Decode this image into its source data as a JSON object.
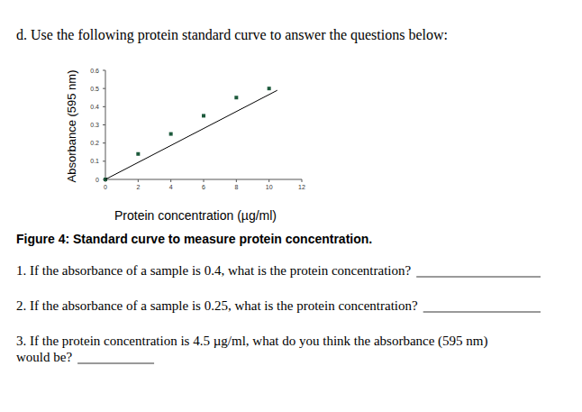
{
  "heading": "d. Use the following protein standard curve to answer the questions below:",
  "chart_data": {
    "type": "scatter",
    "x_label": "Protein concentration (µg/ml)",
    "y_label": "Absorbance (595 nm)",
    "xlim": [
      0,
      12
    ],
    "xticks": [
      0,
      2,
      4,
      6,
      8,
      10,
      12
    ],
    "ylim": [
      0,
      0.6
    ],
    "yticks": [
      0,
      0.1,
      0.2,
      0.3,
      0.4,
      0.5,
      0.6
    ],
    "grid": false,
    "series": [
      {
        "type": "scatter",
        "marker": "square",
        "color": "#1d5a3c",
        "x": [
          0,
          2,
          4,
          6,
          8,
          10
        ],
        "values": [
          0,
          0.14,
          0.25,
          0.35,
          0.45,
          0.5
        ]
      },
      {
        "type": "line",
        "marker": "none",
        "line_style": "solid",
        "color": "#000000",
        "x": [
          0,
          10.5
        ],
        "values": [
          0,
          0.49
        ]
      }
    ]
  },
  "caption": "Figure 4: Standard curve to measure protein concentration.",
  "questions": [
    {
      "lines": [
        "1. If the absorbance of a sample is 0.4, what is the protein concentration?"
      ]
    },
    {
      "lines": [
        "2. If the absorbance of a sample is 0.25, what is the protein concentration?"
      ]
    },
    {
      "lines": [
        "3. If the protein concentration is 4.5 µg/ml, what do you think the absorbance (595 nm)",
        "would be?"
      ]
    }
  ]
}
